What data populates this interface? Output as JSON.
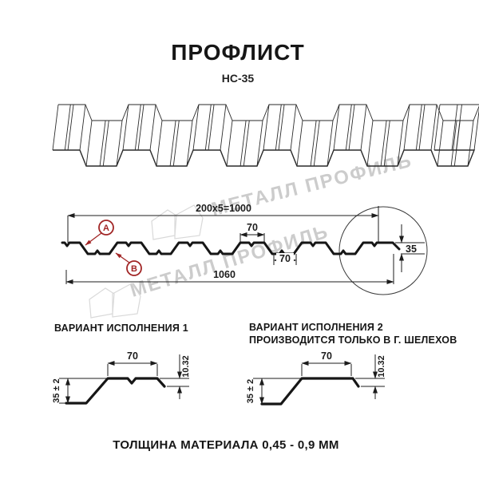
{
  "title": "ПРОФЛИСТ",
  "subtitle": "НС-35",
  "watermark": {
    "text": "МЕТАЛЛ ПРОФИЛЬ"
  },
  "cross_section": {
    "dim_total_top": "200x5=1000",
    "dim_rib_top": "70",
    "dim_rib_bottom": "70",
    "dim_overall_width": "1060",
    "dim_height": "35",
    "label_a": "А",
    "label_b": "В"
  },
  "variant1": {
    "title": "ВАРИАНТ ИСПОЛНЕНИЯ 1",
    "dim_top_flange": "70",
    "dim_edge": "10.32",
    "dim_height": "35 ± 2"
  },
  "variant2": {
    "title": "ВАРИАНТ ИСПОЛНЕНИЯ 2",
    "subtitle": "ПРОИЗВОДИТСЯ ТОЛЬКО В Г. ШЕЛЕХОВ",
    "dim_top_flange": "70",
    "dim_edge": "10.32",
    "dim_height": "35 ± 2"
  },
  "footer": {
    "thickness_note": "ТОЛЩИНА МАТЕРИАЛА 0,45 - 0,9 ММ"
  },
  "colors": {
    "line": "#1c1c1c",
    "accent_red": "#a12525",
    "watermark_gray": "#cccccc"
  }
}
